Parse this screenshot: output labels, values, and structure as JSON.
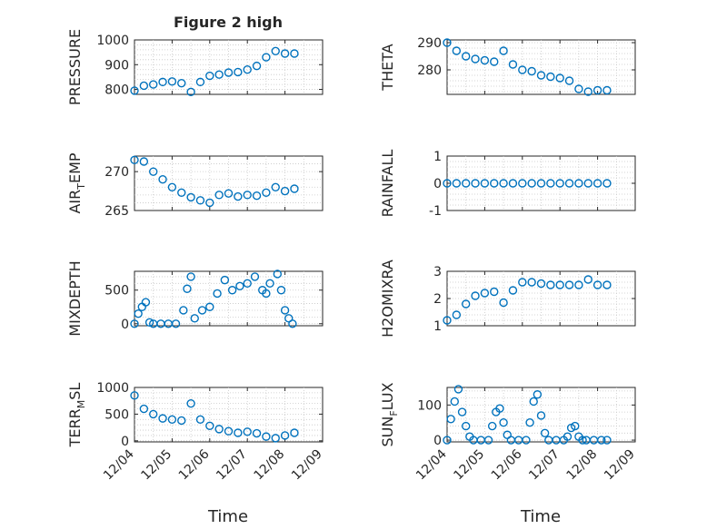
{
  "figure": {
    "title": "Figure 2 high",
    "x_axis_label": "Time",
    "x_tick_labels": [
      "12/04",
      "12/05",
      "12/06",
      "12/07",
      "12/08",
      "12/09"
    ],
    "marker_color": "#0072BD"
  },
  "chart_data": [
    {
      "type": "scatter",
      "name": "pressure",
      "title": "Figure 2 high",
      "ylabel": "PRESSURE",
      "ylabel_sub": "",
      "ylabel_tail": "",
      "xlabel": "",
      "ylim": [
        780,
        1000
      ],
      "yticks": [
        800,
        900,
        1000
      ],
      "ytick_labels": [
        "800",
        "900",
        "1000"
      ],
      "xlim": [
        0,
        5
      ],
      "grid": true,
      "marker": "circle",
      "x_values": [
        0.0,
        0.25,
        0.5,
        0.75,
        1.0,
        1.25,
        1.5,
        1.75,
        2.0,
        2.25,
        2.5,
        2.75,
        3.0,
        3.25,
        3.5,
        3.75,
        4.0,
        4.25
      ],
      "y_values": [
        795,
        815,
        820,
        830,
        832,
        825,
        790,
        830,
        855,
        860,
        868,
        870,
        880,
        895,
        930,
        955,
        945,
        945
      ]
    },
    {
      "type": "scatter",
      "name": "theta",
      "ylabel": "THETA",
      "ylabel_sub": "",
      "ylabel_tail": "",
      "xlabel": "",
      "ylim": [
        271,
        291
      ],
      "yticks": [
        280,
        290
      ],
      "ytick_labels": [
        "280",
        "290"
      ],
      "xlim": [
        0,
        5
      ],
      "grid": true,
      "marker": "circle",
      "x_values": [
        0.0,
        0.25,
        0.5,
        0.75,
        1.0,
        1.25,
        1.5,
        1.75,
        2.0,
        2.25,
        2.5,
        2.75,
        3.0,
        3.25,
        3.5,
        3.75,
        4.0,
        4.25
      ],
      "y_values": [
        290,
        287,
        285,
        284,
        283.5,
        283,
        287,
        282,
        280,
        279.5,
        278,
        277.5,
        277,
        276,
        273,
        272,
        272.5,
        272.5
      ]
    },
    {
      "type": "scatter",
      "name": "air-temp",
      "ylabel": "AIR",
      "ylabel_sub": "T",
      "ylabel_tail": "EMP",
      "xlabel": "",
      "ylim": [
        265,
        272
      ],
      "yticks": [
        265,
        270
      ],
      "ytick_labels": [
        "265",
        "270"
      ],
      "xlim": [
        0,
        5
      ],
      "grid": true,
      "marker": "circle",
      "x_values": [
        0.0,
        0.25,
        0.5,
        0.75,
        1.0,
        1.25,
        1.5,
        1.75,
        2.0,
        2.25,
        2.5,
        2.75,
        3.0,
        3.25,
        3.5,
        3.75,
        4.0,
        4.25
      ],
      "y_values": [
        271.5,
        271.3,
        270.0,
        269.0,
        268.0,
        267.3,
        266.7,
        266.3,
        266.0,
        267.0,
        267.2,
        266.8,
        267.0,
        266.9,
        267.3,
        268.0,
        267.5,
        267.8
      ]
    },
    {
      "type": "scatter",
      "name": "rainfall",
      "ylabel": "RAINFALL",
      "ylabel_sub": "",
      "ylabel_tail": "",
      "xlabel": "",
      "ylim": [
        -1,
        1
      ],
      "yticks": [
        -1,
        0,
        1
      ],
      "ytick_labels": [
        "-1",
        "0",
        "1"
      ],
      "xlim": [
        0,
        5
      ],
      "grid": true,
      "marker": "circle",
      "x_values": [
        0.0,
        0.25,
        0.5,
        0.75,
        1.0,
        1.25,
        1.5,
        1.75,
        2.0,
        2.25,
        2.5,
        2.75,
        3.0,
        3.25,
        3.5,
        3.75,
        4.0,
        4.25
      ],
      "y_values": [
        0,
        0,
        0,
        0,
        0,
        0,
        0,
        0,
        0,
        0,
        0,
        0,
        0,
        0,
        0,
        0,
        0,
        0
      ]
    },
    {
      "type": "scatter",
      "name": "mixdepth",
      "ylabel": "MIXDEPTH",
      "ylabel_sub": "",
      "ylabel_tail": "",
      "xlabel": "",
      "ylim": [
        -30,
        780
      ],
      "yticks": [
        0,
        500
      ],
      "ytick_labels": [
        "0",
        "500"
      ],
      "xlim": [
        0,
        5
      ],
      "grid": true,
      "marker": "circle",
      "x_values": [
        0.0,
        0.1,
        0.2,
        0.3,
        0.4,
        0.5,
        0.7,
        0.9,
        1.1,
        1.3,
        1.4,
        1.5,
        1.6,
        1.8,
        2.0,
        2.2,
        2.4,
        2.6,
        2.8,
        3.0,
        3.2,
        3.4,
        3.5,
        3.6,
        3.8,
        3.9,
        4.0,
        4.1,
        4.2
      ],
      "y_values": [
        0,
        150,
        250,
        320,
        20,
        0,
        0,
        0,
        0,
        200,
        520,
        700,
        80,
        200,
        250,
        450,
        650,
        500,
        560,
        600,
        700,
        500,
        450,
        600,
        740,
        500,
        200,
        80,
        0
      ]
    },
    {
      "type": "scatter",
      "name": "h2omixra",
      "ylabel": "H2OMIXRA",
      "ylabel_sub": "",
      "ylabel_tail": "",
      "xlabel": "",
      "ylim": [
        1,
        3
      ],
      "yticks": [
        1,
        2,
        3
      ],
      "ytick_labels": [
        "1",
        "2",
        "3"
      ],
      "xlim": [
        0,
        5
      ],
      "grid": true,
      "marker": "circle",
      "x_values": [
        0.0,
        0.25,
        0.5,
        0.75,
        1.0,
        1.25,
        1.5,
        1.75,
        2.0,
        2.25,
        2.5,
        2.75,
        3.0,
        3.25,
        3.5,
        3.75,
        4.0,
        4.25
      ],
      "y_values": [
        1.2,
        1.4,
        1.8,
        2.1,
        2.2,
        2.25,
        1.85,
        2.3,
        2.6,
        2.6,
        2.55,
        2.5,
        2.5,
        2.5,
        2.5,
        2.7,
        2.5,
        2.5
      ]
    },
    {
      "type": "scatter",
      "name": "terr-msl",
      "ylabel": "TERR",
      "ylabel_sub": "M",
      "ylabel_tail": "SL",
      "xlabel": "",
      "ylim": [
        -20,
        1000
      ],
      "yticks": [
        0,
        500,
        1000
      ],
      "ytick_labels": [
        "0",
        "500",
        "1000"
      ],
      "xlim": [
        0,
        5
      ],
      "grid": true,
      "marker": "circle",
      "x_values": [
        0.0,
        0.25,
        0.5,
        0.75,
        1.0,
        1.25,
        1.5,
        1.75,
        2.0,
        2.25,
        2.5,
        2.75,
        3.0,
        3.25,
        3.5,
        3.75,
        4.0,
        4.25
      ],
      "y_values": [
        850,
        600,
        500,
        420,
        400,
        380,
        700,
        400,
        280,
        220,
        180,
        150,
        170,
        140,
        80,
        50,
        100,
        150
      ]
    },
    {
      "type": "scatter",
      "name": "sun-flux",
      "ylabel": "SUN",
      "ylabel_sub": "F",
      "ylabel_tail": "LUX",
      "xlabel": "",
      "ylim": [
        -5,
        150
      ],
      "yticks": [
        0,
        100
      ],
      "ytick_labels": [
        "0",
        "100"
      ],
      "xlim": [
        0,
        5
      ],
      "grid": true,
      "marker": "circle",
      "x_values": [
        0.0,
        0.1,
        0.2,
        0.3,
        0.4,
        0.5,
        0.6,
        0.7,
        0.9,
        1.1,
        1.2,
        1.3,
        1.4,
        1.5,
        1.6,
        1.7,
        1.9,
        2.1,
        2.2,
        2.3,
        2.4,
        2.5,
        2.6,
        2.7,
        2.9,
        3.1,
        3.2,
        3.3,
        3.4,
        3.5,
        3.6,
        3.7,
        3.9,
        4.1,
        4.25
      ],
      "y_values": [
        0,
        60,
        110,
        145,
        80,
        40,
        10,
        0,
        0,
        0,
        40,
        80,
        90,
        50,
        15,
        0,
        0,
        0,
        50,
        110,
        130,
        70,
        20,
        0,
        0,
        0,
        10,
        35,
        40,
        10,
        0,
        0,
        0,
        0,
        0
      ]
    }
  ]
}
